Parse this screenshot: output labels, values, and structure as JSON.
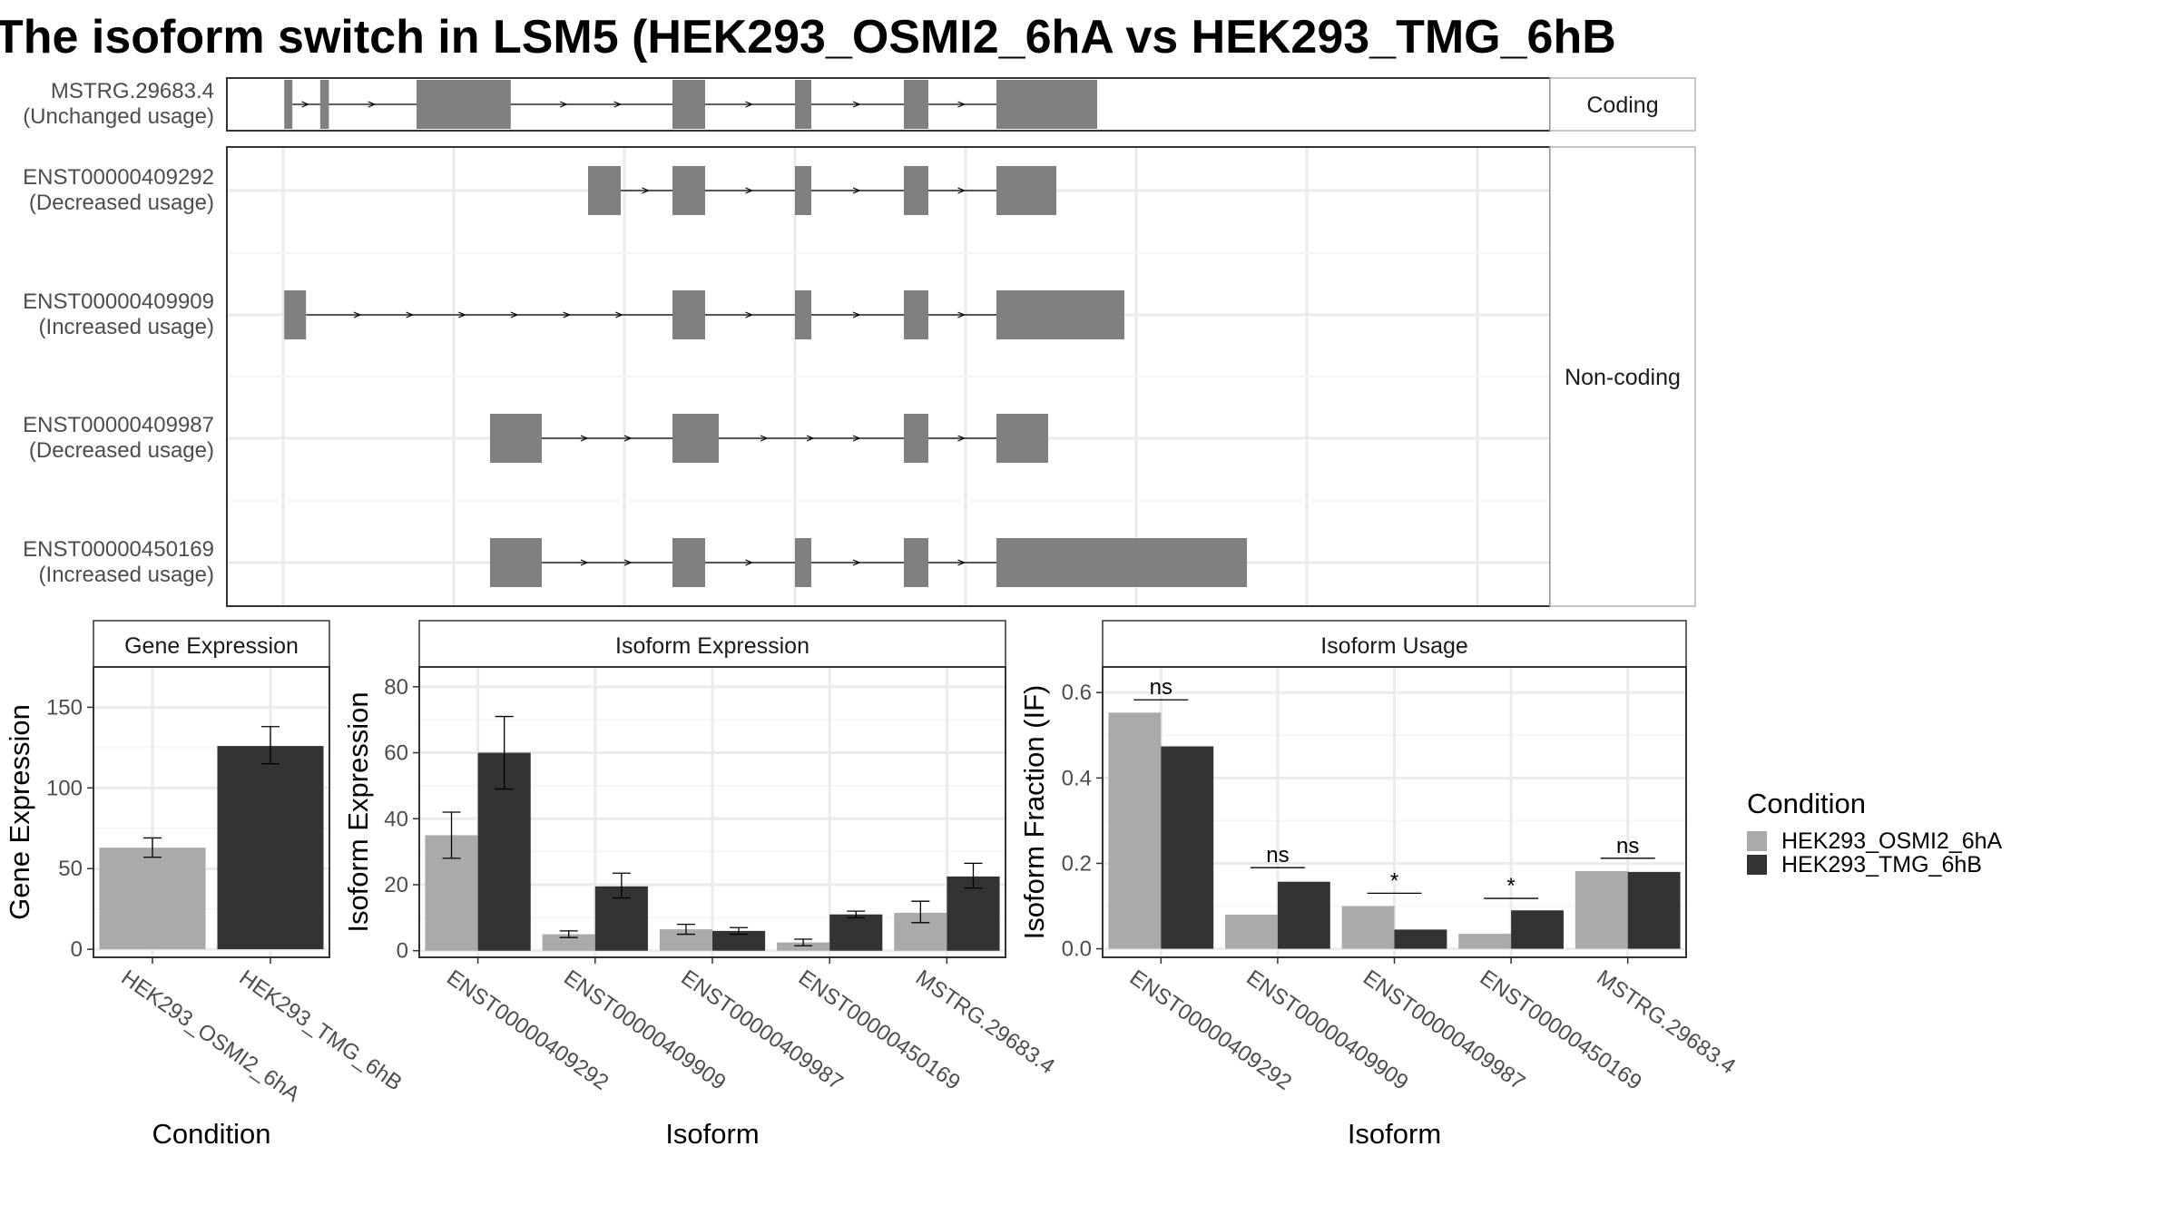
{
  "title": "The isoform switch in LSM5 (HEK293_OSMI2_6hA vs HEK293_TMG_6hB",
  "colors": {
    "exon": "#808080",
    "cond1": "#aaaaaa",
    "cond2": "#333333",
    "grid": "#ebebeb",
    "frame": "#333333"
  },
  "chart_data": [
    {
      "type": "gene-structure",
      "groups": [
        {
          "name": "Coding",
          "isoforms": [
            {
              "id": "MSTRG.29683.4",
              "note": "(Unchanged usage)",
              "exons": [
                [
                  0.2,
                  1.7
                ],
                [
                  6.8,
                  8.4
                ],
                [
                  24.5,
                  41.8
                ],
                [
                  71.5,
                  77.5
                ],
                [
                  94,
                  97
                ],
                [
                  114,
                  118.5
                ],
                [
                  131,
                  149.5
                ]
              ]
            }
          ]
        },
        {
          "name": "Non-coding",
          "isoforms": [
            {
              "id": "ENST00000409292",
              "note": "(Decreased usage)",
              "exons": [
                [
                  56,
                  62
                ],
                [
                  71.5,
                  77.5
                ],
                [
                  94,
                  97
                ],
                [
                  114,
                  118.5
                ],
                [
                  131,
                  142
                ]
              ]
            },
            {
              "id": "ENST00000409909",
              "note": "(Increased usage)",
              "exons": [
                [
                  0.2,
                  4.2
                ],
                [
                  71.5,
                  77.5
                ],
                [
                  94,
                  97
                ],
                [
                  114,
                  118.5
                ],
                [
                  131,
                  154.5
                ]
              ]
            },
            {
              "id": "ENST00000409987",
              "note": "(Decreased usage)",
              "exons": [
                [
                  38,
                  47.5
                ],
                [
                  71.5,
                  80
                ],
                [
                  114,
                  118.5
                ],
                [
                  131,
                  140.5
                ]
              ]
            },
            {
              "id": "ENST00000450169",
              "note": "(Increased usage)",
              "exons": [
                [
                  38,
                  47.5
                ],
                [
                  71.5,
                  77.5
                ],
                [
                  94,
                  97
                ],
                [
                  114,
                  118.5
                ],
                [
                  131,
                  177
                ]
              ]
            }
          ]
        }
      ]
    },
    {
      "type": "bar",
      "title": "Gene Expression",
      "xlabel": "Condition",
      "ylabel": "Gene Expression",
      "categories": [
        "HEK293_OSMI2_6hA",
        "HEK293_TMG_6hB"
      ],
      "values": [
        63,
        126
      ],
      "errors": [
        [
          57,
          69
        ],
        [
          115,
          138
        ]
      ],
      "yticks": [
        0,
        50,
        100,
        150
      ],
      "ylim": [
        -5,
        175
      ]
    },
    {
      "type": "bar",
      "title": "Isoform Expression",
      "xlabel": "Isoform",
      "ylabel": "Isoform Expression",
      "categories": [
        "ENST00000409292",
        "ENST00000409909",
        "ENST00000409987",
        "ENST00000450169",
        "MSTRG.29683.4"
      ],
      "series": [
        {
          "name": "HEK293_OSMI2_6hA",
          "values": [
            35,
            5,
            6.5,
            2.5,
            11.5
          ],
          "errors": [
            [
              28,
              42
            ],
            [
              4,
              6
            ],
            [
              5,
              8
            ],
            [
              1.5,
              3.5
            ],
            [
              8.5,
              15
            ]
          ]
        },
        {
          "name": "HEK293_TMG_6hB",
          "values": [
            60,
            19.5,
            6,
            11,
            22.5
          ],
          "errors": [
            [
              49,
              71
            ],
            [
              16,
              23.5
            ],
            [
              5,
              7
            ],
            [
              10,
              12
            ],
            [
              19,
              26.5
            ]
          ]
        }
      ],
      "yticks": [
        0,
        20,
        40,
        60,
        80
      ],
      "ylim": [
        -2,
        86
      ]
    },
    {
      "type": "bar",
      "title": "Isoform Usage",
      "xlabel": "Isoform",
      "ylabel": "Isoform Fraction (IF)",
      "categories": [
        "ENST00000409292",
        "ENST00000409909",
        "ENST00000409987",
        "ENST00000450169",
        "MSTRG.29683.4"
      ],
      "series": [
        {
          "name": "HEK293_OSMI2_6hA",
          "values": [
            0.553,
            0.08,
            0.1,
            0.035,
            0.182
          ]
        },
        {
          "name": "HEK293_TMG_6hB",
          "values": [
            0.474,
            0.157,
            0.045,
            0.09,
            0.18
          ]
        }
      ],
      "significance": [
        "ns",
        "ns",
        "*",
        "*",
        "ns"
      ],
      "sig_y": [
        0.583,
        0.19,
        0.13,
        0.118,
        0.212
      ],
      "yticks": [
        0.0,
        0.2,
        0.4,
        0.6
      ],
      "ytick_labels": [
        "0.0",
        "0.2",
        "0.4",
        "0.6"
      ],
      "ylim": [
        -0.02,
        0.66
      ]
    }
  ],
  "legend": {
    "title": "Condition",
    "entries": [
      "HEK293_OSMI2_6hA",
      "HEK293_TMG_6hB"
    ]
  }
}
